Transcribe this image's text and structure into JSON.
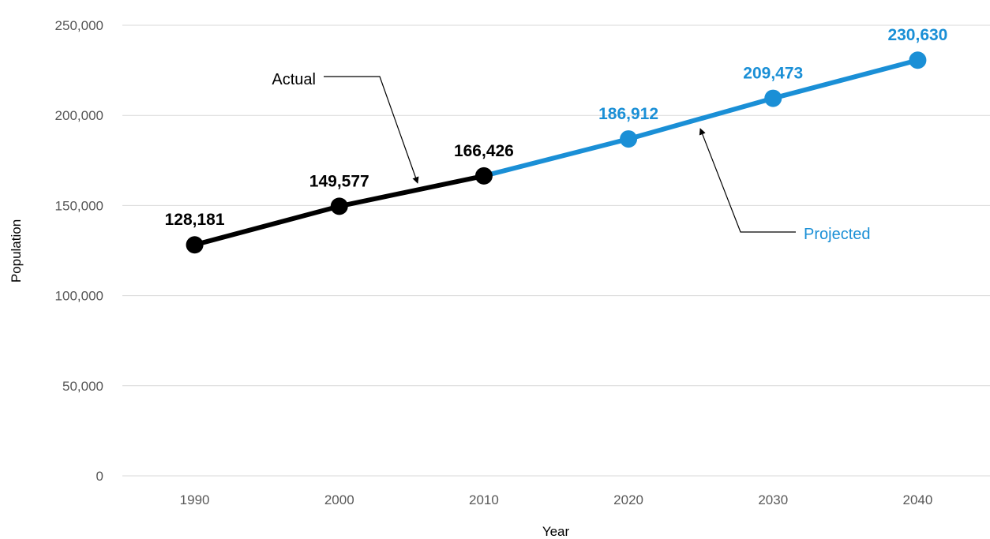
{
  "chart_data": {
    "type": "line",
    "xlabel": "Year",
    "ylabel": "Population",
    "ylim": [
      0,
      250000
    ],
    "y_ticks": [
      "0",
      "50,000",
      "100,000",
      "150,000",
      "200,000",
      "250,000"
    ],
    "y_tick_values": [
      0,
      50000,
      100000,
      150000,
      200000,
      250000
    ],
    "categories": [
      "1990",
      "2000",
      "2010",
      "2020",
      "2030",
      "2040"
    ],
    "series": [
      {
        "name": "Actual",
        "color": "#000000",
        "x": [
          "1990",
          "2000",
          "2010"
        ],
        "values": [
          128181,
          149577,
          166426
        ],
        "labels": [
          "128,181",
          "149,577",
          "166,426"
        ]
      },
      {
        "name": "Projected",
        "color": "#1a8fd6",
        "x": [
          "2010",
          "2020",
          "2030",
          "2040"
        ],
        "values": [
          166426,
          186912,
          209473,
          230630
        ],
        "labels": [
          "",
          "186,912",
          "209,473",
          "230,630"
        ]
      }
    ],
    "annotations": [
      {
        "text": "Actual",
        "color": "#000000"
      },
      {
        "text": "Projected",
        "color": "#1a8fd6"
      }
    ],
    "grid": true,
    "legend": "none"
  }
}
